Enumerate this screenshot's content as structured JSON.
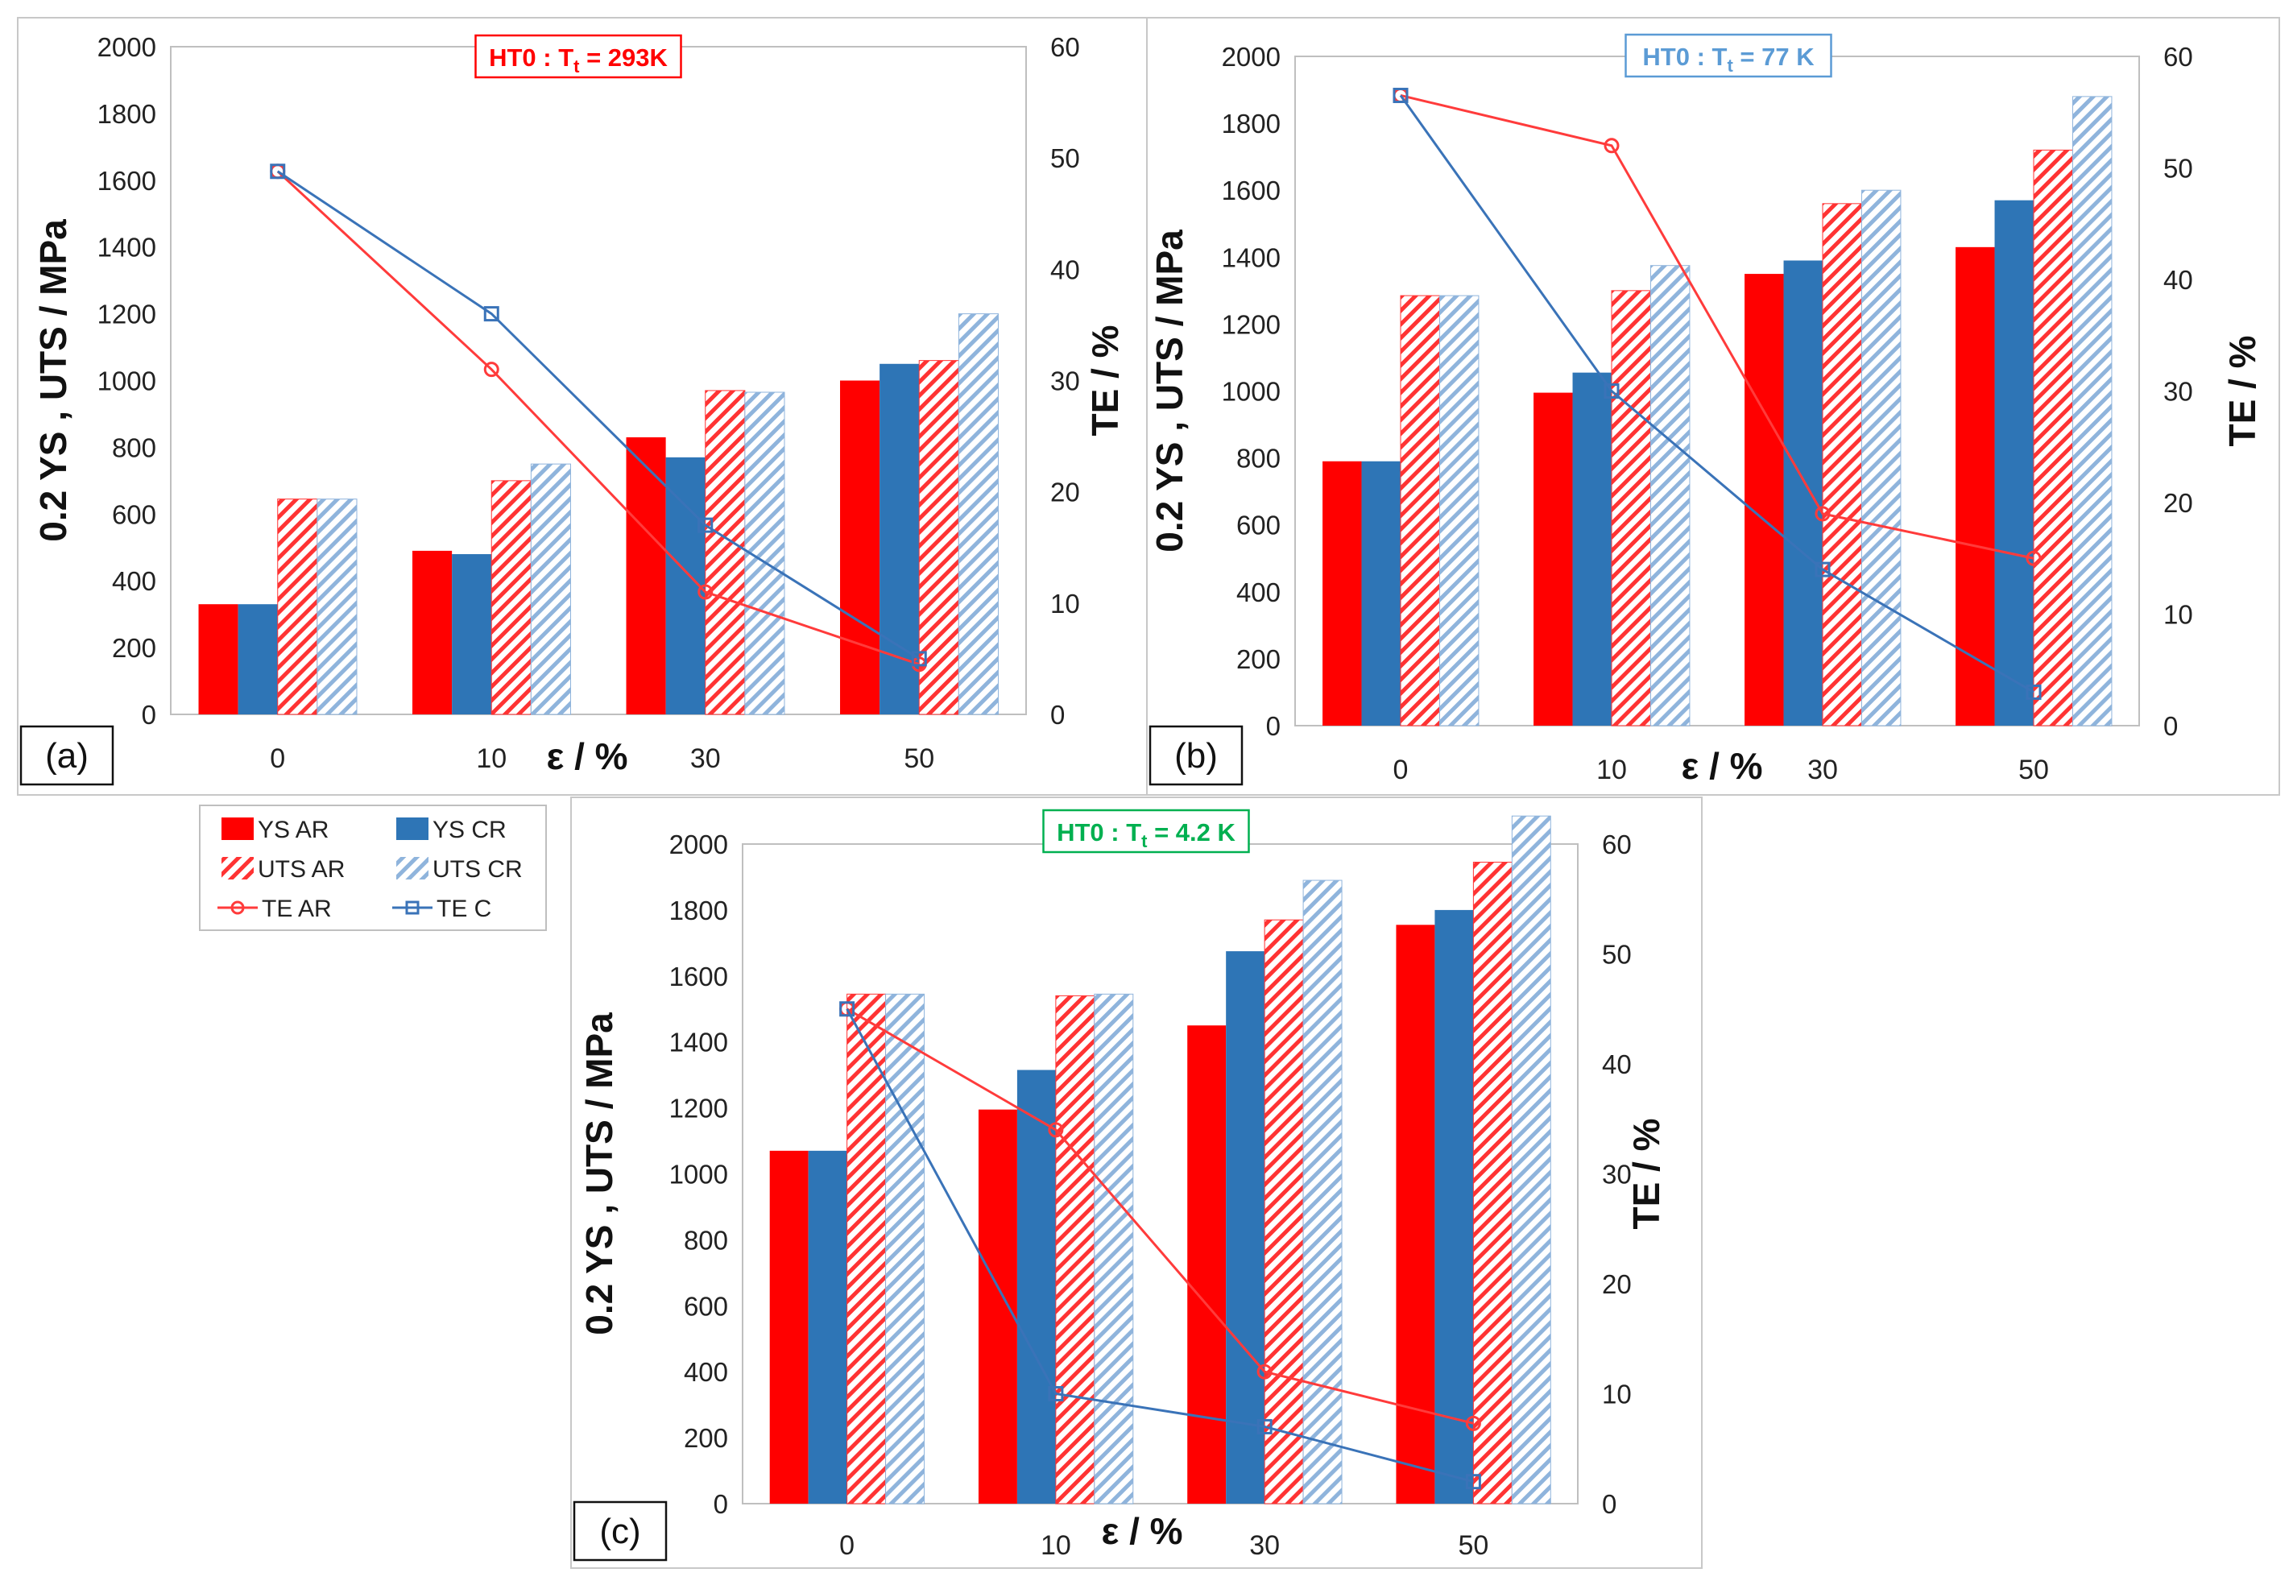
{
  "legend": {
    "entries": [
      "YS AR",
      "YS CR",
      "UTS AR",
      "UTS CR",
      "TE AR",
      "TE C"
    ]
  },
  "colors": {
    "ys_ar": "#ff0000",
    "ys_cr": "#2e75b6",
    "uts_ar": "#ff3333",
    "uts_cr": "#8fb4dc",
    "te_ar": "#ff3b3b",
    "te_c": "#3a73b8",
    "title_a": "#ff0000",
    "title_b": "#5b9bd5",
    "title_c": "#00b050"
  },
  "chart_data": [
    {
      "type": "bar",
      "panel_label": "(a)",
      "title_main": "HT0 : T",
      "title_sub": "t",
      "title_tail": " = 293K",
      "xlabel": "ε / %",
      "ylabel": "0.2 YS , UTS / MPa",
      "y2label": "TE / %",
      "ylim": [
        0,
        2000
      ],
      "y2lim": [
        0,
        60
      ],
      "yticks": [
        "0",
        "200",
        "400",
        "600",
        "800",
        "1000",
        "1200",
        "1400",
        "1600",
        "1800",
        "2000"
      ],
      "y2ticks": [
        "0",
        "10",
        "20",
        "30",
        "40",
        "50",
        "60"
      ],
      "categories": [
        "0",
        "10",
        "30",
        "50"
      ],
      "series": [
        {
          "name": "YS AR",
          "values": [
            330,
            490,
            830,
            1000
          ]
        },
        {
          "name": "YS CR",
          "values": [
            330,
            480,
            770,
            1050
          ]
        },
        {
          "name": "UTS AR",
          "values": [
            645,
            700,
            970,
            1060
          ]
        },
        {
          "name": "UTS CR",
          "values": [
            645,
            750,
            965,
            1200
          ]
        },
        {
          "name": "TE AR",
          "values": [
            48.8,
            31,
            11,
            4.5
          ]
        },
        {
          "name": "TE C",
          "values": [
            48.8,
            36,
            17,
            5
          ]
        }
      ]
    },
    {
      "type": "bar",
      "panel_label": "(b)",
      "title_main": "HT0 : T",
      "title_sub": "t",
      "title_tail": " = 77 K",
      "xlabel": "ε / %",
      "ylabel": "0.2 YS , UTS / MPa",
      "y2label": "TE / %",
      "ylim": [
        0,
        2000
      ],
      "y2lim": [
        0,
        60
      ],
      "yticks": [
        "0",
        "200",
        "400",
        "600",
        "800",
        "1000",
        "1200",
        "1400",
        "1600",
        "1800",
        "2000"
      ],
      "y2ticks": [
        "0",
        "10",
        "20",
        "30",
        "40",
        "50",
        "60"
      ],
      "categories": [
        "0",
        "10",
        "30",
        "50"
      ],
      "series": [
        {
          "name": "YS AR",
          "values": [
            790,
            995,
            1350,
            1430
          ]
        },
        {
          "name": "YS CR",
          "values": [
            790,
            1055,
            1390,
            1570
          ]
        },
        {
          "name": "UTS AR",
          "values": [
            1285,
            1300,
            1560,
            1720
          ]
        },
        {
          "name": "UTS CR",
          "values": [
            1285,
            1375,
            1600,
            1880
          ]
        },
        {
          "name": "TE AR",
          "values": [
            56.5,
            52,
            19,
            15
          ]
        },
        {
          "name": "TE C",
          "values": [
            56.5,
            30,
            14,
            3
          ]
        }
      ]
    },
    {
      "type": "bar",
      "panel_label": "(c)",
      "title_main": "HT0 : T",
      "title_sub": "t",
      "title_tail": " = 4.2 K",
      "xlabel": "ε / %",
      "ylabel": "0.2 YS , UTS / MPa",
      "y2label": "TE / %",
      "ylim": [
        0,
        2000
      ],
      "y2lim": [
        0,
        60
      ],
      "yticks": [
        "0",
        "200",
        "400",
        "600",
        "800",
        "1000",
        "1200",
        "1400",
        "1600",
        "1800",
        "2000"
      ],
      "y2ticks": [
        "0",
        "10",
        "20",
        "30",
        "40",
        "50",
        "60"
      ],
      "categories": [
        "0",
        "10",
        "30",
        "50"
      ],
      "series": [
        {
          "name": "YS AR",
          "values": [
            1070,
            1195,
            1450,
            1755
          ]
        },
        {
          "name": "YS CR",
          "values": [
            1070,
            1315,
            1675,
            1800
          ]
        },
        {
          "name": "UTS AR",
          "values": [
            1545,
            1540,
            1770,
            1945
          ]
        },
        {
          "name": "UTS CR",
          "values": [
            1545,
            1545,
            1890,
            2085
          ]
        },
        {
          "name": "TE AR",
          "values": [
            45,
            34,
            12,
            7.3
          ]
        },
        {
          "name": "TE C",
          "values": [
            45,
            10,
            7,
            2
          ]
        }
      ]
    }
  ]
}
